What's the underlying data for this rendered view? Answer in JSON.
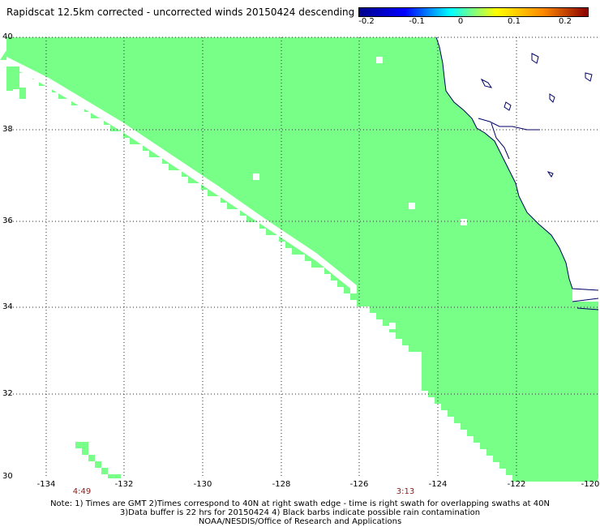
{
  "title": "Rapidscat 12.5km corrected - uncorrected winds 20150424 descending",
  "colorbar": {
    "colors": [
      "#00008b",
      "#0000ff",
      "#00ffff",
      "#ffff00",
      "#ff8c00",
      "#8b0000"
    ],
    "ticks": [
      "-0.2",
      "-0.1",
      "0",
      "0.1",
      "0.2"
    ]
  },
  "lat_labels": [
    "40",
    "38",
    "36",
    "34",
    "32",
    "30"
  ],
  "lon_labels": [
    "-134",
    "-132",
    "-130",
    "-128",
    "-126",
    "-124",
    "-122",
    "-120"
  ],
  "swath_times": [
    "4:49",
    "3:13"
  ],
  "notes": [
    "Note: 1) Times are GMT 2)Times correspond to 40N at right swath edge - time is right swath for overlapping swaths at 40N",
    "3)Data buffer is 22 hrs for 20150424 4) Black barbs indicate possible rain contamination",
    "NOAA/NESDIS/Office of Research and Applications"
  ],
  "map_colors": {
    "swath": "#77ff88",
    "coast": "#000066",
    "grid": "#2b2b2b"
  }
}
